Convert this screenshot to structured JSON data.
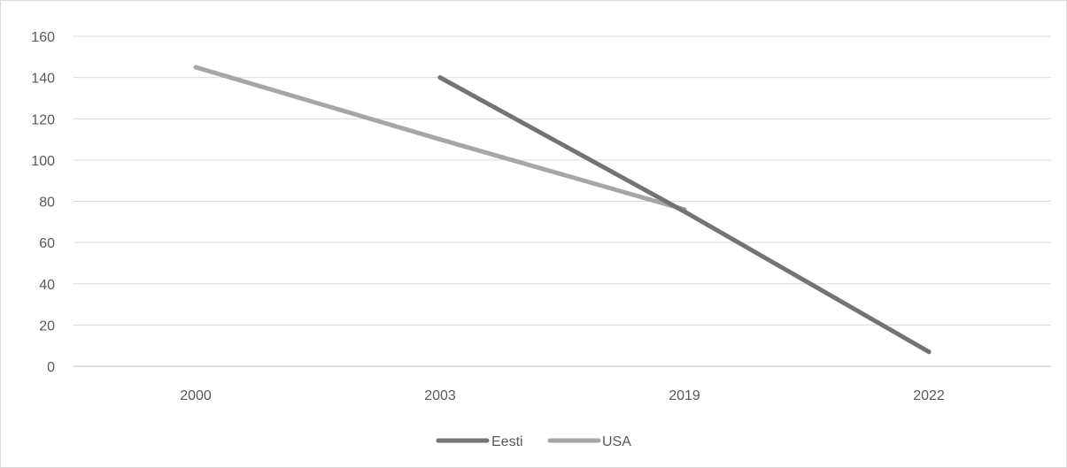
{
  "chart_data": {
    "type": "line",
    "categories": [
      "2000",
      "2003",
      "2019",
      "2022"
    ],
    "y_ticks": [
      "0",
      "20",
      "40",
      "60",
      "80",
      "100",
      "120",
      "140",
      "160"
    ],
    "ylim": [
      0,
      160
    ],
    "grid": true,
    "legend_position": "bottom",
    "series": [
      {
        "name": "Eesti",
        "color": "#737373",
        "values": [
          null,
          140,
          75,
          7
        ]
      },
      {
        "name": "USA",
        "color": "#a6a6a6",
        "values": [
          145,
          110,
          76,
          null
        ]
      }
    ]
  }
}
